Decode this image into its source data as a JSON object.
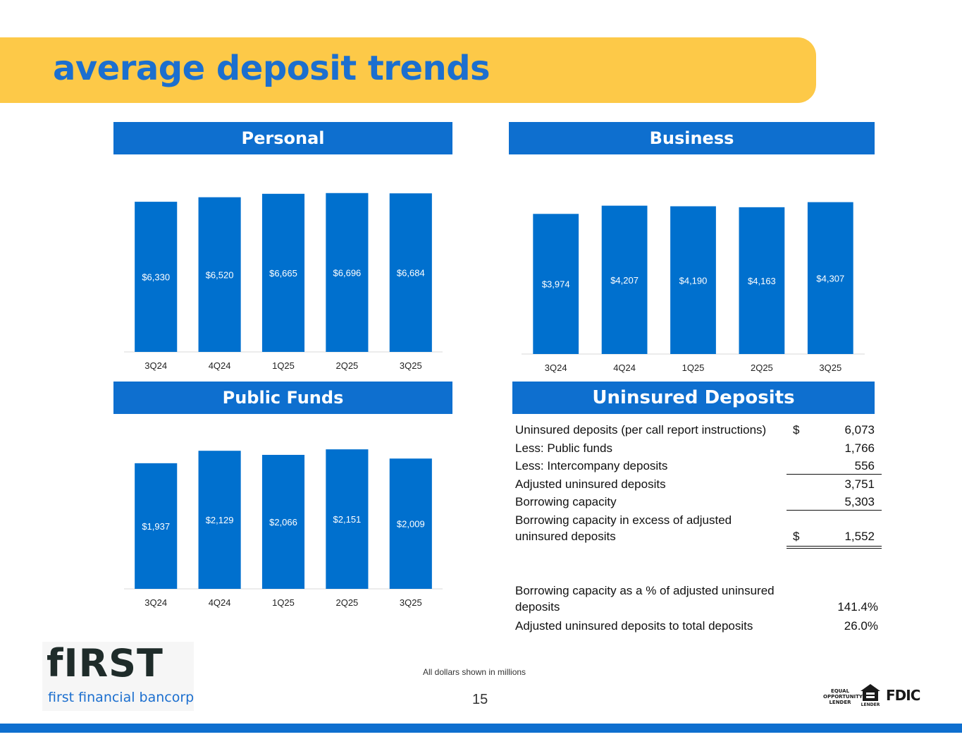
{
  "slide": {
    "title": "average deposit trends",
    "footnote": "All dollars shown in millions",
    "page_number": "15",
    "logo_word": "fIRST",
    "logo_subtitle": "first financial bancorp",
    "equal_opportunity_text": "EQUAL OPPORTUNITY LENDER",
    "housing_icon_caption": "LENDER",
    "fdic_text": "FDIC",
    "colors": {
      "banner": "#FDC948",
      "header_blue": "#0E6FCF",
      "bar_blue": "#0070CE",
      "title_blue": "#1C6FCF"
    }
  },
  "panels": {
    "personal": {
      "header": "Personal"
    },
    "business": {
      "header": "Business"
    },
    "public_funds": {
      "header": "Public Funds"
    },
    "uninsured": {
      "header": "Uninsured Deposits"
    }
  },
  "chart_data": [
    {
      "id": "personal",
      "type": "bar",
      "title": "Personal",
      "categories": [
        "3Q24",
        "4Q24",
        "1Q25",
        "2Q25",
        "3Q25"
      ],
      "values": [
        6330,
        6520,
        6665,
        6696,
        6684
      ],
      "labels": [
        "$6,330",
        "$6,520",
        "$6,665",
        "$6,696",
        "$6,684"
      ],
      "ylim": [
        0,
        7700
      ],
      "grid": false,
      "legend": "none"
    },
    {
      "id": "business",
      "type": "bar",
      "title": "Business",
      "categories": [
        "3Q24",
        "4Q24",
        "1Q25",
        "2Q25",
        "3Q25"
      ],
      "values": [
        3974,
        4207,
        4190,
        4163,
        4307
      ],
      "labels": [
        "$3,974",
        "$4,207",
        "$4,190",
        "$4,163",
        "$4,307"
      ],
      "ylim": [
        0,
        4900
      ],
      "grid": false,
      "legend": "none"
    },
    {
      "id": "public_funds",
      "type": "bar",
      "title": "Public Funds",
      "categories": [
        "3Q24",
        "4Q24",
        "1Q25",
        "2Q25",
        "3Q25"
      ],
      "values": [
        1937,
        2129,
        2066,
        2151,
        2009
      ],
      "labels": [
        "$1,937",
        "$2,129",
        "$2,066",
        "$2,151",
        "$2,009"
      ],
      "ylim": [
        0,
        2490
      ],
      "grid": false,
      "legend": "none"
    },
    {
      "id": "uninsured_deposits",
      "type": "table",
      "title": "Uninsured Deposits",
      "rows": [
        {
          "label": "Uninsured deposits (per call report instructions)",
          "currency": "$",
          "value": "6,073"
        },
        {
          "label": "Less: Public funds",
          "currency": "",
          "value": "1,766"
        },
        {
          "label": "Less: Intercompany deposits",
          "currency": "",
          "value": "556"
        },
        {
          "label": "Adjusted uninsured deposits",
          "currency": "",
          "value": "3,751"
        },
        {
          "label": "Borrowing capacity",
          "currency": "",
          "value": "5,303"
        },
        {
          "label": "Borrowing capacity in excess of adjusted uninsured deposits",
          "currency": "$",
          "value": "1,552"
        },
        {
          "label": "Borrowing capacity as a % of adjusted uninsured deposits",
          "currency": "",
          "value": "141.4%"
        },
        {
          "label": "Adjusted uninsured deposits to total deposits",
          "currency": "",
          "value": "26.0%"
        }
      ]
    }
  ]
}
